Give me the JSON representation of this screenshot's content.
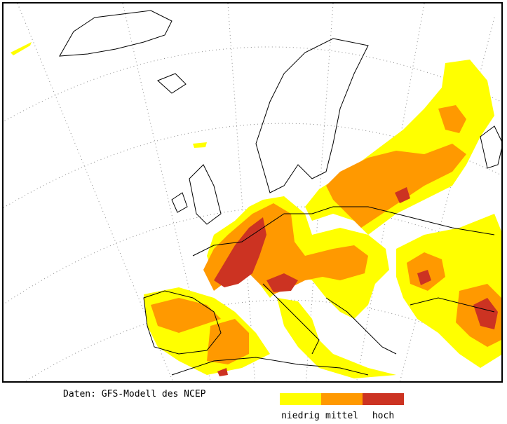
{
  "map": {
    "region": "Europe",
    "projection": "polar stereographic",
    "graticule": "dotted"
  },
  "footer": {
    "source_text": "Daten: GFS-Modell des NCEP"
  },
  "legend": {
    "items": [
      {
        "label": "niedrig",
        "color": "#ffff00"
      },
      {
        "label": "mittel",
        "color": "#ff9900"
      },
      {
        "label": "hoch",
        "color": "#cc3322"
      }
    ]
  }
}
